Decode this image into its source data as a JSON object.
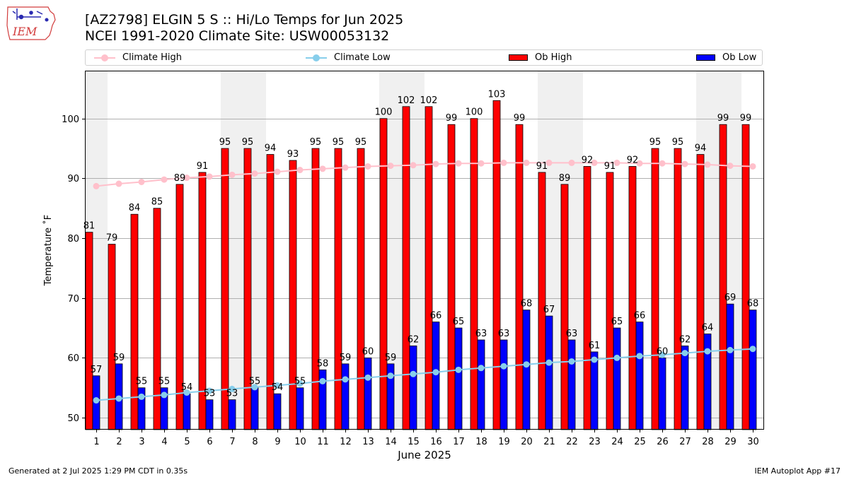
{
  "header": {
    "title_line1": "[AZ2798] ELGIN 5 S :: Hi/Lo Temps for Jun 2025",
    "title_line2": "NCEI 1991-2020 Climate Site: USW00053132"
  },
  "logo": {
    "text": "IEM",
    "color": "#d23c3c"
  },
  "legend": {
    "position": "top",
    "items": [
      {
        "label": "Climate High",
        "color": "#ffc0cb",
        "kind": "line-marker"
      },
      {
        "label": "Climate Low",
        "color": "#87ceeb",
        "kind": "line-marker"
      },
      {
        "label": "Ob High",
        "color": "#ff0000",
        "kind": "bar"
      },
      {
        "label": "Ob Low",
        "color": "#0000ff",
        "kind": "bar"
      }
    ]
  },
  "chart_data": {
    "type": "bar",
    "xlabel": "June 2025",
    "ylabel": "Temperature ˚F",
    "ylim": [
      48,
      108
    ],
    "yticks": [
      50,
      60,
      70,
      80,
      90,
      100
    ],
    "grid": "horizontal",
    "weekend_shading_color": "#f0f0f0",
    "weekend_days": [
      1,
      7,
      8,
      14,
      15,
      21,
      22,
      28,
      29
    ],
    "days": [
      1,
      2,
      3,
      4,
      5,
      6,
      7,
      8,
      9,
      10,
      11,
      12,
      13,
      14,
      15,
      16,
      17,
      18,
      19,
      20,
      21,
      22,
      23,
      24,
      25,
      26,
      27,
      28,
      29,
      30
    ],
    "series": [
      {
        "name": "Ob High",
        "color": "#ff0000",
        "values": [
          81,
          79,
          84,
          85,
          89,
          91,
          95,
          95,
          94,
          93,
          95,
          95,
          95,
          100,
          102,
          102,
          99,
          100,
          103,
          99,
          91,
          89,
          92,
          91,
          92,
          95,
          95,
          94,
          99,
          99
        ]
      },
      {
        "name": "Ob Low",
        "color": "#0000ff",
        "values": [
          57,
          59,
          55,
          55,
          54,
          53,
          53,
          55,
          54,
          55,
          58,
          59,
          60,
          59,
          62,
          66,
          65,
          63,
          63,
          68,
          67,
          63,
          61,
          65,
          66,
          60,
          62,
          64,
          69,
          68
        ]
      },
      {
        "name": "Climate High",
        "color": "#ffc0cb",
        "values": [
          88.7,
          89.1,
          89.4,
          89.8,
          90.1,
          90.3,
          90.6,
          90.8,
          91.1,
          91.4,
          91.6,
          91.8,
          92.0,
          92.1,
          92.2,
          92.4,
          92.5,
          92.5,
          92.6,
          92.6,
          92.6,
          92.6,
          92.6,
          92.6,
          92.5,
          92.5,
          92.4,
          92.3,
          92.1,
          92.0
        ]
      },
      {
        "name": "Climate Low",
        "color": "#87ceeb",
        "values": [
          52.9,
          53.2,
          53.5,
          53.8,
          54.2,
          54.5,
          54.8,
          55.1,
          55.4,
          55.7,
          56.1,
          56.4,
          56.7,
          57.0,
          57.3,
          57.6,
          58.0,
          58.3,
          58.6,
          58.9,
          59.2,
          59.4,
          59.7,
          60.0,
          60.3,
          60.5,
          60.8,
          61.1,
          61.3,
          61.5
        ]
      }
    ]
  },
  "footer": {
    "left": "Generated at 2 Jul 2025 1:29 PM CDT in 0.35s",
    "right": "IEM Autoplot App #17"
  }
}
